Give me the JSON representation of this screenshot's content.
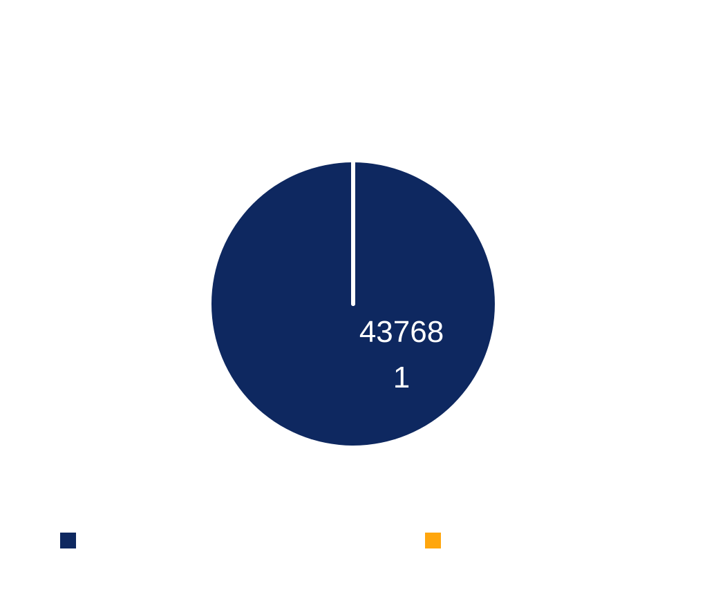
{
  "chart_data": {
    "type": "pie",
    "title": "",
    "slices": [
      {
        "label": "",
        "value": 437681,
        "display_value": "437681",
        "color": "#0e2860"
      },
      {
        "label": "",
        "value": 0,
        "display_value": "",
        "color": "#ffa60d"
      }
    ],
    "start_angle_deg": 0,
    "direction": "clockwise",
    "legend": {
      "placement": "bottom",
      "entries": [
        {
          "name": "",
          "color": "#0e2860"
        },
        {
          "name": "",
          "color": "#ffa60d"
        }
      ]
    }
  }
}
